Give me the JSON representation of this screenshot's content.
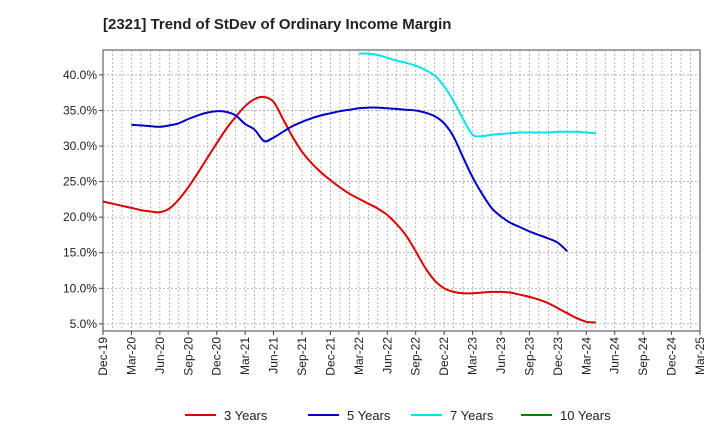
{
  "chart_data": {
    "type": "line",
    "title": "[2321]  Trend of StDev of Ordinary Income Margin",
    "xlabel": "",
    "ylabel": "",
    "x_tick_labels": [
      "Dec-19",
      "Mar-20",
      "Jun-20",
      "Sep-20",
      "Dec-20",
      "Mar-21",
      "Jun-21",
      "Sep-21",
      "Dec-21",
      "Mar-22",
      "Jun-22",
      "Sep-22",
      "Dec-22",
      "Mar-23",
      "Jun-23",
      "Sep-23",
      "Dec-23",
      "Mar-24",
      "Jun-24",
      "Sep-24",
      "Dec-24",
      "Mar-25"
    ],
    "y_tick_labels": [
      "5.0%",
      "10.0%",
      "15.0%",
      "20.0%",
      "25.0%",
      "30.0%",
      "35.0%",
      "40.0%"
    ],
    "y_ticks": [
      5,
      10,
      15,
      20,
      25,
      30,
      35,
      40
    ],
    "ylim": [
      4.0,
      43.5
    ],
    "grid": true,
    "legend_position": "bottom",
    "series": [
      {
        "name": "3 Years",
        "color": "#dd0000",
        "points": [
          [
            "Dec-19",
            22.2
          ],
          [
            "Jan-20",
            21.9
          ],
          [
            "Feb-20",
            21.6
          ],
          [
            "Mar-20",
            21.3
          ],
          [
            "Apr-20",
            21.0
          ],
          [
            "May-20",
            20.8
          ],
          [
            "Jun-20",
            20.7
          ],
          [
            "Jul-20",
            21.2
          ],
          [
            "Aug-20",
            22.5
          ],
          [
            "Sep-20",
            24.2
          ],
          [
            "Oct-20",
            26.2
          ],
          [
            "Nov-20",
            28.3
          ],
          [
            "Dec-20",
            30.4
          ],
          [
            "Jan-21",
            32.4
          ],
          [
            "Feb-21",
            34.1
          ],
          [
            "Mar-21",
            35.6
          ],
          [
            "Apr-21",
            36.6
          ],
          [
            "May-21",
            36.9
          ],
          [
            "Jun-21",
            36.2
          ],
          [
            "Jul-21",
            33.8
          ],
          [
            "Aug-21",
            31.3
          ],
          [
            "Sep-21",
            29.2
          ],
          [
            "Oct-21",
            27.6
          ],
          [
            "Nov-21",
            26.3
          ],
          [
            "Dec-21",
            25.2
          ],
          [
            "Jan-22",
            24.2
          ],
          [
            "Feb-22",
            23.3
          ],
          [
            "Mar-22",
            22.6
          ],
          [
            "Apr-22",
            21.9
          ],
          [
            "May-22",
            21.2
          ],
          [
            "Jun-22",
            20.3
          ],
          [
            "Jul-22",
            19.0
          ],
          [
            "Aug-22",
            17.4
          ],
          [
            "Sep-22",
            15.2
          ],
          [
            "Oct-22",
            12.9
          ],
          [
            "Nov-22",
            11.1
          ],
          [
            "Dec-22",
            10.0
          ],
          [
            "Jan-23",
            9.5
          ],
          [
            "Feb-23",
            9.3
          ],
          [
            "Mar-23",
            9.3
          ],
          [
            "Apr-23",
            9.4
          ],
          [
            "May-23",
            9.5
          ],
          [
            "Jun-23",
            9.5
          ],
          [
            "Jul-23",
            9.4
          ],
          [
            "Aug-23",
            9.1
          ],
          [
            "Sep-23",
            8.8
          ],
          [
            "Oct-23",
            8.4
          ],
          [
            "Nov-23",
            7.9
          ],
          [
            "Dec-23",
            7.2
          ],
          [
            "Jan-24",
            6.5
          ],
          [
            "Feb-24",
            5.8
          ],
          [
            "Mar-24",
            5.3
          ],
          [
            "Apr-24",
            5.2
          ]
        ]
      },
      {
        "name": "5 Years",
        "color": "#0000cc",
        "points": [
          [
            "Mar-20",
            33.0
          ],
          [
            "Apr-20",
            32.9
          ],
          [
            "May-20",
            32.8
          ],
          [
            "Jun-20",
            32.7
          ],
          [
            "Jul-20",
            32.9
          ],
          [
            "Aug-20",
            33.2
          ],
          [
            "Sep-20",
            33.8
          ],
          [
            "Oct-20",
            34.3
          ],
          [
            "Nov-20",
            34.7
          ],
          [
            "Dec-20",
            34.9
          ],
          [
            "Jan-21",
            34.8
          ],
          [
            "Feb-21",
            34.3
          ],
          [
            "Mar-21",
            33.1
          ],
          [
            "Apr-21",
            32.3
          ],
          [
            "May-21",
            30.7
          ],
          [
            "Jun-21",
            31.2
          ],
          [
            "Jul-21",
            32.0
          ],
          [
            "Aug-21",
            32.8
          ],
          [
            "Sep-21",
            33.4
          ],
          [
            "Oct-21",
            33.9
          ],
          [
            "Nov-21",
            34.3
          ],
          [
            "Dec-21",
            34.6
          ],
          [
            "Jan-22",
            34.9
          ],
          [
            "Feb-22",
            35.1
          ],
          [
            "Mar-22",
            35.3
          ],
          [
            "Apr-22",
            35.4
          ],
          [
            "May-22",
            35.4
          ],
          [
            "Jun-22",
            35.3
          ],
          [
            "Jul-22",
            35.2
          ],
          [
            "Aug-22",
            35.1
          ],
          [
            "Sep-22",
            35.0
          ],
          [
            "Oct-22",
            34.7
          ],
          [
            "Nov-22",
            34.2
          ],
          [
            "Dec-22",
            33.2
          ],
          [
            "Jan-23",
            31.3
          ],
          [
            "Feb-23",
            28.4
          ],
          [
            "Mar-23",
            25.6
          ],
          [
            "Apr-23",
            23.3
          ],
          [
            "May-23",
            21.3
          ],
          [
            "Jun-23",
            20.1
          ],
          [
            "Jul-23",
            19.2
          ],
          [
            "Aug-23",
            18.6
          ],
          [
            "Sep-23",
            18.0
          ],
          [
            "Oct-23",
            17.5
          ],
          [
            "Nov-23",
            17.0
          ],
          [
            "Dec-23",
            16.4
          ],
          [
            "Jan-24",
            15.2
          ]
        ]
      },
      {
        "name": "7 Years",
        "color": "#00e5e5",
        "points": [
          [
            "Mar-22",
            43.0
          ],
          [
            "Apr-22",
            43.0
          ],
          [
            "May-22",
            42.8
          ],
          [
            "Jun-22",
            42.4
          ],
          [
            "Jul-22",
            42.0
          ],
          [
            "Aug-22",
            41.7
          ],
          [
            "Sep-22",
            41.3
          ],
          [
            "Oct-22",
            40.7
          ],
          [
            "Nov-22",
            39.9
          ],
          [
            "Dec-22",
            38.4
          ],
          [
            "Jan-23",
            36.3
          ],
          [
            "Feb-23",
            33.8
          ],
          [
            "Mar-23",
            31.6
          ],
          [
            "Apr-23",
            31.4
          ],
          [
            "May-23",
            31.6
          ],
          [
            "Jun-23",
            31.7
          ],
          [
            "Jul-23",
            31.8
          ],
          [
            "Aug-23",
            31.9
          ],
          [
            "Sep-23",
            31.9
          ],
          [
            "Oct-23",
            31.9
          ],
          [
            "Nov-23",
            31.9
          ],
          [
            "Dec-23",
            32.0
          ],
          [
            "Jan-24",
            32.0
          ],
          [
            "Feb-24",
            32.0
          ],
          [
            "Mar-24",
            31.9
          ],
          [
            "Apr-24",
            31.8
          ]
        ]
      },
      {
        "name": "10 Years",
        "color": "#008000",
        "points": []
      }
    ]
  }
}
